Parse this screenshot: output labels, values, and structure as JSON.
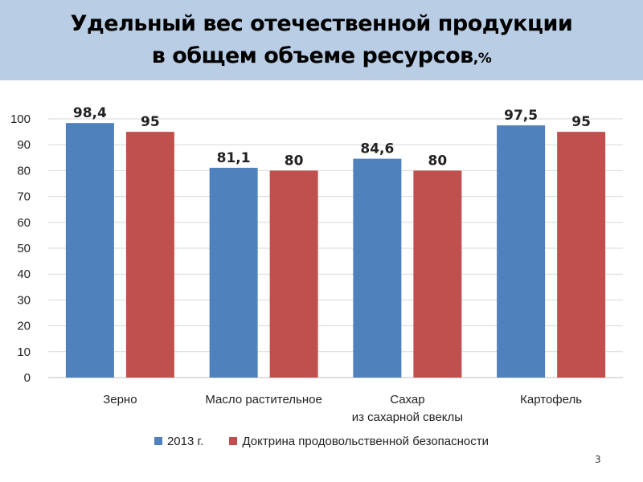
{
  "header": {
    "title_line1": "Удельный вес отечественной продукции",
    "title_line2": "в общем объеме ресурсов",
    "title_unit": ",%"
  },
  "page_number": "3",
  "colors": {
    "series_2013": "#4f81bd",
    "series_doctrine": "#c0504d",
    "title_band": "#b9cde5"
  },
  "chart_data": {
    "type": "bar",
    "categories": [
      [
        "Зерно"
      ],
      [
        "Масло растительное"
      ],
      [
        "Сахар",
        "из сахарной свеклы"
      ],
      [
        "Картофель"
      ]
    ],
    "series": [
      {
        "name": "2013 г.",
        "values": [
          98.4,
          81.1,
          84.6,
          97.5
        ],
        "labels": [
          "98,4",
          "81,1",
          "84,6",
          "97,5"
        ],
        "color": "#4f81bd"
      },
      {
        "name": "Доктрина продовольственной безопасности",
        "values": [
          95,
          80,
          80,
          95
        ],
        "labels": [
          "95",
          "80",
          "80",
          "95"
        ],
        "color": "#c0504d"
      }
    ],
    "yticks": [
      0,
      10,
      20,
      30,
      40,
      50,
      60,
      70,
      80,
      90,
      100
    ],
    "ylim": [
      0,
      100
    ],
    "grid": true,
    "legend_position": "bottom"
  }
}
